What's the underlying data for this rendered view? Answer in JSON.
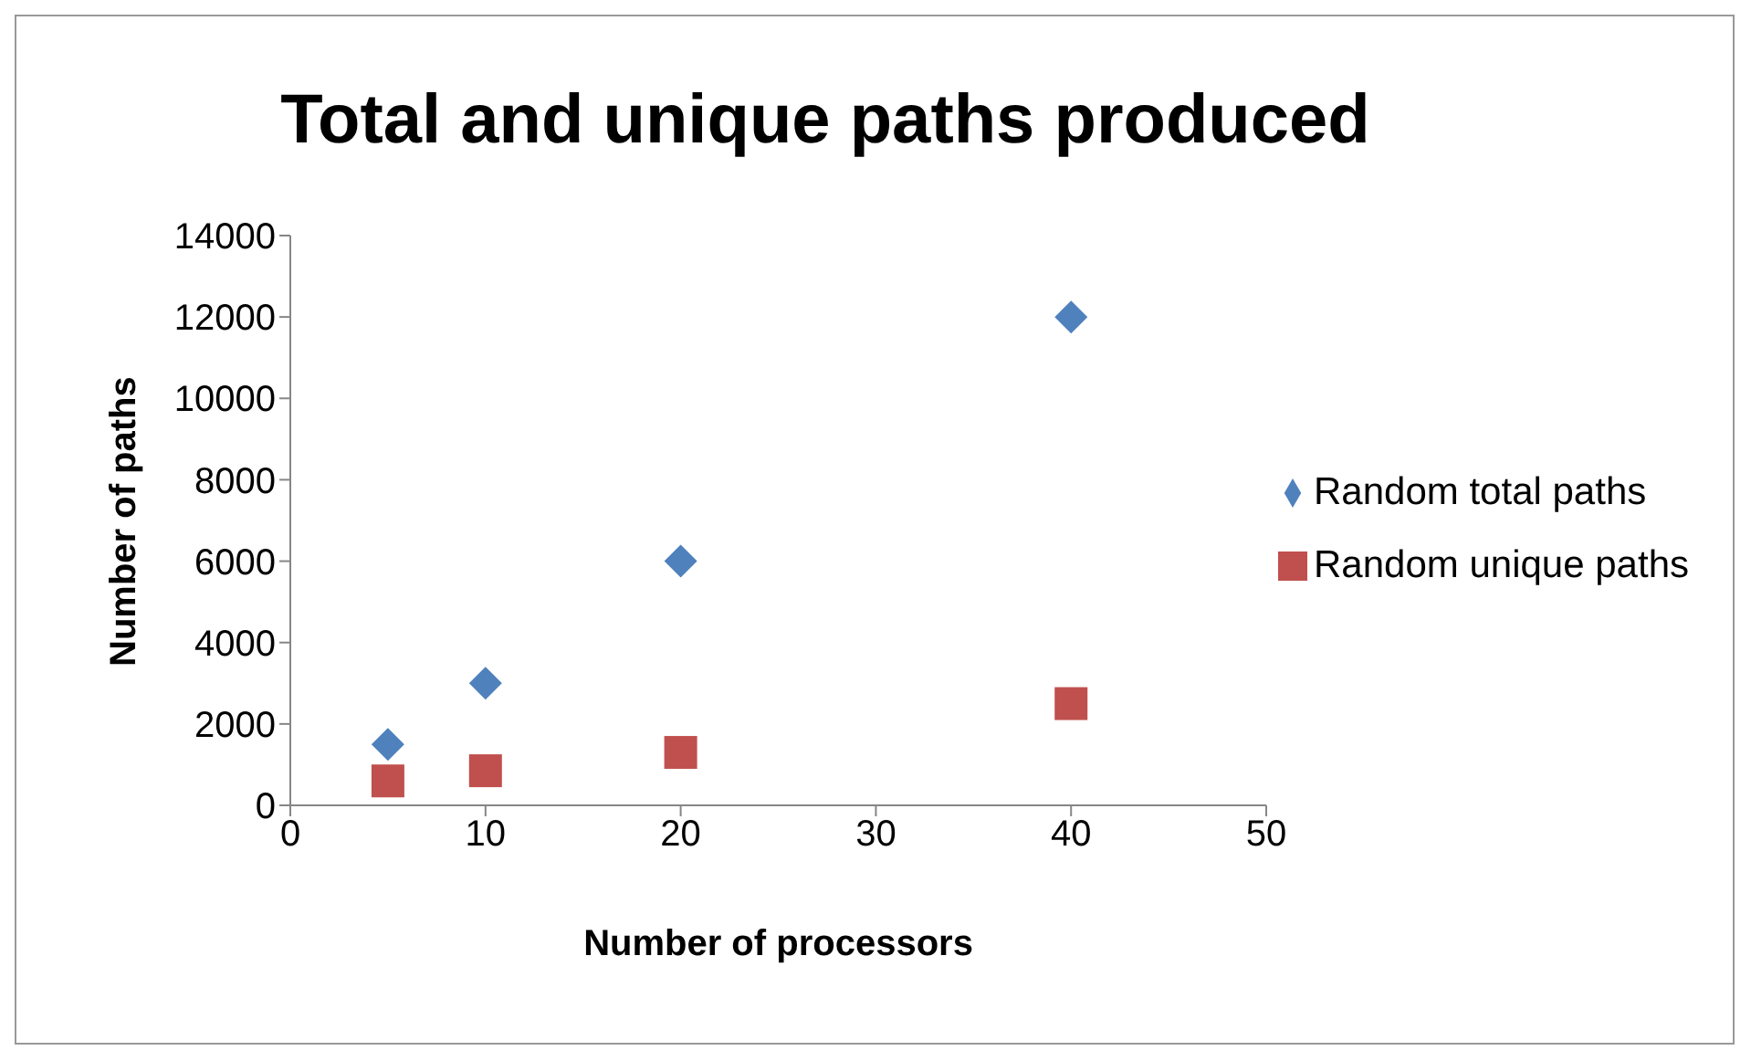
{
  "chart_data": {
    "type": "scatter",
    "title": "Total and unique paths produced",
    "xlabel": "Number of processors",
    "ylabel": "Number of paths",
    "xlim": [
      0,
      50
    ],
    "xticks": [
      0,
      10,
      20,
      30,
      40,
      50
    ],
    "ylim": [
      0,
      14000
    ],
    "yticks": [
      0,
      2000,
      4000,
      6000,
      8000,
      10000,
      12000,
      14000
    ],
    "grid": false,
    "legend": "right",
    "series": [
      {
        "name": "Random total paths",
        "color": "#4f81bd",
        "marker": "diamond",
        "x": [
          5,
          10,
          20,
          40
        ],
        "values": [
          1500,
          3000,
          6000,
          12000
        ]
      },
      {
        "name": "Random unique paths",
        "color": "#c0504d",
        "marker": "square",
        "x": [
          5,
          10,
          20,
          40
        ],
        "values": [
          600,
          850,
          1300,
          2500
        ]
      }
    ]
  }
}
